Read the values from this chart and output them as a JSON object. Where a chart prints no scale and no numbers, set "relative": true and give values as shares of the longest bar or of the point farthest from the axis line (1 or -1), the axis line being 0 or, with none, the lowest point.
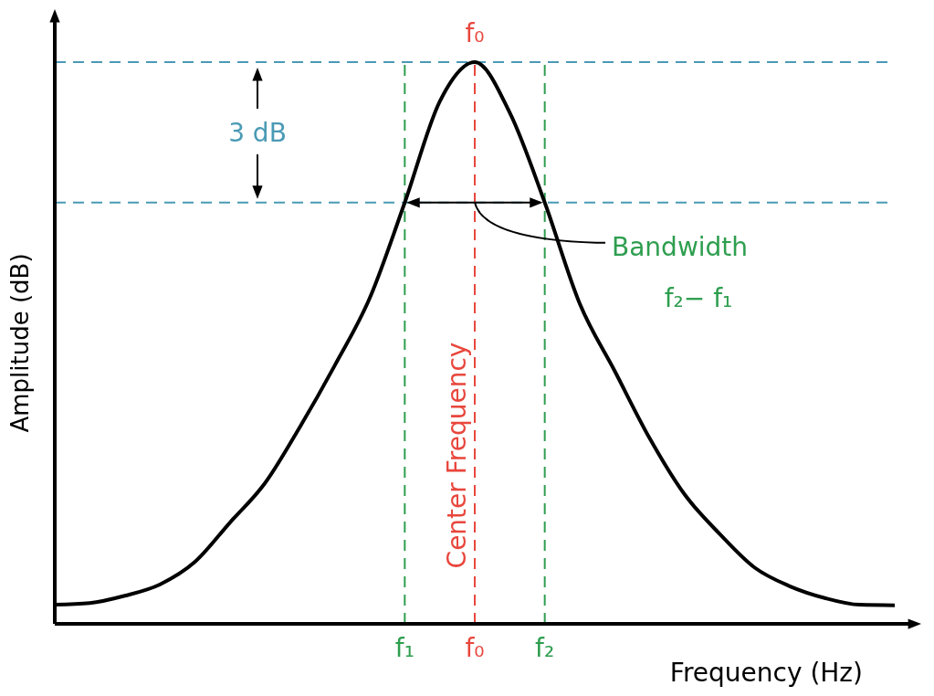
{
  "chart_data": {
    "type": "line",
    "relative": true,
    "xlabel": "Frequency (Hz)",
    "ylabel": "Amplitude (dB)",
    "categories": [
      null,
      null,
      null,
      null,
      null,
      null,
      null,
      null,
      null,
      null,
      "f₁",
      null,
      "f₀",
      null,
      "f₂",
      null,
      null,
      null,
      null,
      null,
      null,
      null,
      null,
      null,
      null
    ],
    "series": [
      {
        "color": "#000000",
        "values": [
          0.034,
          0.037,
          0.05,
          0.07,
          0.11,
          0.18,
          0.25,
          0.35,
          0.46,
          0.58,
          0.75,
          0.93,
          1,
          0.91,
          0.75,
          0.57,
          0.45,
          0.33,
          0.23,
          0.16,
          0.1,
          0.067,
          0.046,
          0.034,
          0.033
        ]
      }
    ],
    "ref_lines": [
      {
        "axis": "y",
        "value": 1,
        "color": "#4a9ab5",
        "line_style": "dashed"
      },
      {
        "axis": "y",
        "value": 0.75,
        "color": "#4a9ab5",
        "line_style": "dashed"
      },
      {
        "axis": "x",
        "value": "f₁",
        "color": "#2e9e4f",
        "line_style": "dashed"
      },
      {
        "axis": "x",
        "value": "f₀",
        "label": "Center Frequency",
        "color": "#e8473d",
        "line_style": "dashed"
      },
      {
        "axis": "x",
        "value": "f₂",
        "color": "#2e9e4f",
        "line_style": "dashed"
      }
    ],
    "annotations": [
      "3 dB",
      "Bandwidth",
      "f₂− f₁",
      {
        "text": "f₀",
        "x": "f₀",
        "y": 1
      }
    ]
  }
}
